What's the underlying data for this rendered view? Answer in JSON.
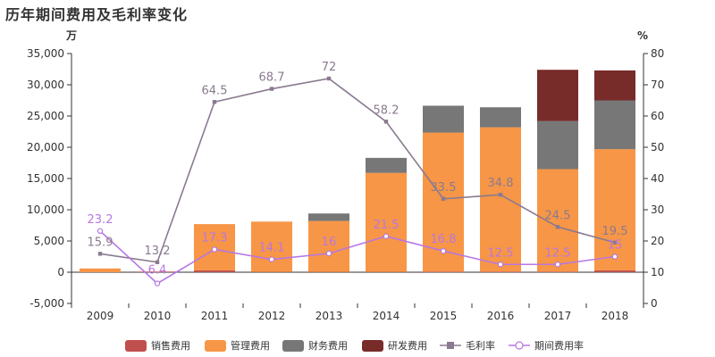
{
  "title": "历年期间费用及毛利率变化",
  "colors": {
    "sales": "#c0504d",
    "admin": "#f79646",
    "finance": "#777777",
    "rnd": "#772c2a",
    "gross": "#8a7a90",
    "period": "#b777e2"
  },
  "chart_data": {
    "type": "bar",
    "stacked": true,
    "title": "历年期间费用及毛利率变化",
    "categories": [
      "2009",
      "2010",
      "2011",
      "2012",
      "2013",
      "2014",
      "2015",
      "2016",
      "2017",
      "2018"
    ],
    "y_left": {
      "unit": "万",
      "ylim": [
        -5000,
        35000
      ],
      "ticks": [
        "-5,000",
        "0",
        "5,000",
        "10,000",
        "15,000",
        "20,000",
        "25,000",
        "30,000",
        "35,000"
      ],
      "tick_values": [
        -5000,
        0,
        5000,
        10000,
        15000,
        20000,
        25000,
        30000,
        35000
      ]
    },
    "y_right": {
      "unit": "%",
      "ylim": [
        0,
        80
      ],
      "ticks": [
        "0",
        "10",
        "20",
        "30",
        "40",
        "50",
        "60",
        "70",
        "80"
      ],
      "tick_values": [
        0,
        10,
        20,
        30,
        40,
        50,
        60,
        70,
        80
      ]
    },
    "series": [
      {
        "name": "销售费用",
        "key": "sales",
        "kind": "bar",
        "values": [
          0,
          100,
          300,
          50,
          50,
          50,
          100,
          100,
          100,
          300
        ]
      },
      {
        "name": "管理费用",
        "key": "admin",
        "kind": "bar",
        "values": [
          600,
          0,
          7400,
          8050,
          8150,
          15850,
          22250,
          23100,
          16400,
          19400
        ]
      },
      {
        "name": "财务费用",
        "key": "finance",
        "kind": "bar",
        "values": [
          0,
          0,
          0,
          0,
          1200,
          2400,
          4300,
          3200,
          7700,
          7800
        ]
      },
      {
        "name": "研发费用",
        "key": "rnd",
        "kind": "bar",
        "values": [
          0,
          0,
          0,
          0,
          0,
          0,
          0,
          0,
          8200,
          4800
        ]
      },
      {
        "name": "毛利率",
        "key": "gross",
        "kind": "line",
        "axis": "right",
        "values": [
          15.9,
          13.2,
          64.5,
          68.7,
          72,
          58.2,
          33.5,
          34.8,
          24.5,
          19.5
        ],
        "labels": [
          "15.9",
          "13.2",
          "64.5",
          "68.7",
          "72",
          "58.2",
          "33.5",
          "34.8",
          "24.5",
          "19.5"
        ]
      },
      {
        "name": "期间费用率",
        "key": "period",
        "kind": "line",
        "axis": "right",
        "values": [
          23.2,
          6.4,
          17.3,
          14.1,
          16,
          21.5,
          16.8,
          12.5,
          12.5,
          15
        ],
        "labels": [
          "23.2",
          "6.4",
          "17.3",
          "14.1",
          "16",
          "21.5",
          "16.8",
          "12.5",
          "12.5",
          "15"
        ]
      }
    ],
    "legend": [
      "销售费用",
      "管理费用",
      "财务费用",
      "研发费用",
      "毛利率",
      "期间费用率"
    ],
    "legend_position": "bottom"
  }
}
